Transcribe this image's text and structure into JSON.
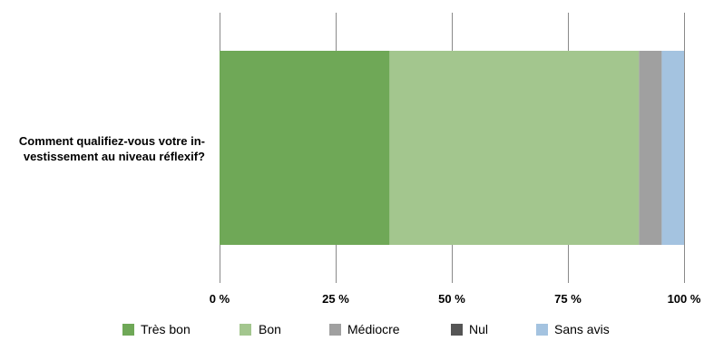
{
  "chart_data": {
    "type": "bar",
    "orientation": "horizontal",
    "stacked": true,
    "percent": true,
    "categories": [
      "Comment qualifiez-vous votre investissement au niveau réflexif?"
    ],
    "category_label_lines": [
      "Comment qualifiez-vous votre in-",
      "vestissement au niveau réflexif?"
    ],
    "series": [
      {
        "name": "Très bon",
        "values": [
          36.6
        ],
        "color": "#6fa857"
      },
      {
        "name": "Bon",
        "values": [
          53.7
        ],
        "color": "#a3c68e"
      },
      {
        "name": "Médiocre",
        "values": [
          4.9
        ],
        "color": "#a0a0a0"
      },
      {
        "name": "Nul",
        "values": [
          0
        ],
        "color": "#555555"
      },
      {
        "name": "Sans avis",
        "values": [
          4.8
        ],
        "color": "#a4c3e0"
      }
    ],
    "xlim": [
      0,
      100
    ],
    "xticks": [
      0,
      25,
      50,
      75,
      100
    ],
    "xtick_labels": [
      "0 %",
      "25 %",
      "50 %",
      "75 %",
      "100 %"
    ],
    "grid": true,
    "gridline_color": "#8a8a8a",
    "legend_position": "bottom",
    "title": "",
    "xlabel": "",
    "ylabel": ""
  }
}
